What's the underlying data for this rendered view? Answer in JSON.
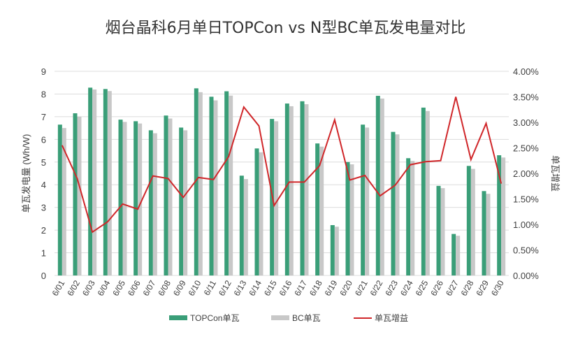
{
  "chart_data": {
    "type": "bar",
    "title": "烟台晶科6月单日TOPCon vs N型BC单瓦发电量对比",
    "ylabel": "单瓦发电量 (Wh/W)",
    "y2label": "单瓦增益",
    "ylim": [
      0,
      9
    ],
    "y2lim": [
      0,
      4
    ],
    "yticks": [
      "0",
      "1",
      "2",
      "3",
      "4",
      "5",
      "6",
      "7",
      "8",
      "9"
    ],
    "y2ticks": [
      "0.00%",
      "0.50%",
      "1.00%",
      "1.50%",
      "2.00%",
      "2.50%",
      "3.00%",
      "3.50%",
      "4.00%"
    ],
    "grid": true,
    "legend_position": "bottom",
    "categories": [
      "6/01",
      "6/02",
      "6/03",
      "6/04",
      "6/05",
      "6/06",
      "6/07",
      "6/08",
      "6/09",
      "6/10",
      "6/11",
      "6/12",
      "6/13",
      "6/14",
      "6/15",
      "6/16",
      "6/17",
      "6/18",
      "6/19",
      "6/20",
      "6/21",
      "6/22",
      "6/23",
      "6/24",
      "6/25",
      "6/26",
      "6/27",
      "6/28",
      "6/29",
      "6/30"
    ],
    "series": [
      {
        "name": "TOPCon单瓦",
        "type": "bar",
        "axis": "left",
        "color": "#3a9e78",
        "values": [
          6.65,
          7.15,
          8.28,
          8.22,
          6.87,
          6.8,
          6.4,
          7.05,
          6.52,
          8.25,
          7.88,
          8.12,
          4.4,
          5.6,
          6.9,
          7.58,
          7.68,
          5.82,
          2.22,
          5.0,
          6.65,
          7.92,
          6.33,
          5.17,
          7.4,
          3.95,
          1.83,
          4.83,
          3.72,
          5.3
        ]
      },
      {
        "name": "BC单瓦",
        "type": "bar",
        "axis": "left",
        "color": "#c8c8c8",
        "values": [
          6.5,
          7.0,
          8.2,
          8.13,
          6.77,
          6.7,
          6.27,
          6.92,
          6.4,
          8.08,
          7.72,
          7.93,
          4.25,
          5.43,
          6.8,
          7.46,
          7.55,
          5.68,
          2.15,
          4.9,
          6.52,
          7.8,
          6.22,
          5.05,
          7.25,
          3.85,
          1.75,
          4.7,
          3.6,
          5.2
        ]
      },
      {
        "name": "单瓦增益",
        "type": "line",
        "axis": "right",
        "color": "#d0272a",
        "unit": "%",
        "values": [
          2.55,
          1.9,
          0.85,
          1.05,
          1.4,
          1.3,
          1.95,
          1.9,
          1.53,
          1.92,
          1.88,
          2.33,
          3.3,
          2.93,
          1.37,
          1.83,
          1.83,
          2.15,
          3.05,
          1.87,
          1.96,
          1.56,
          1.77,
          2.17,
          2.23,
          2.25,
          3.5,
          2.27,
          2.98,
          1.8
        ]
      }
    ]
  }
}
